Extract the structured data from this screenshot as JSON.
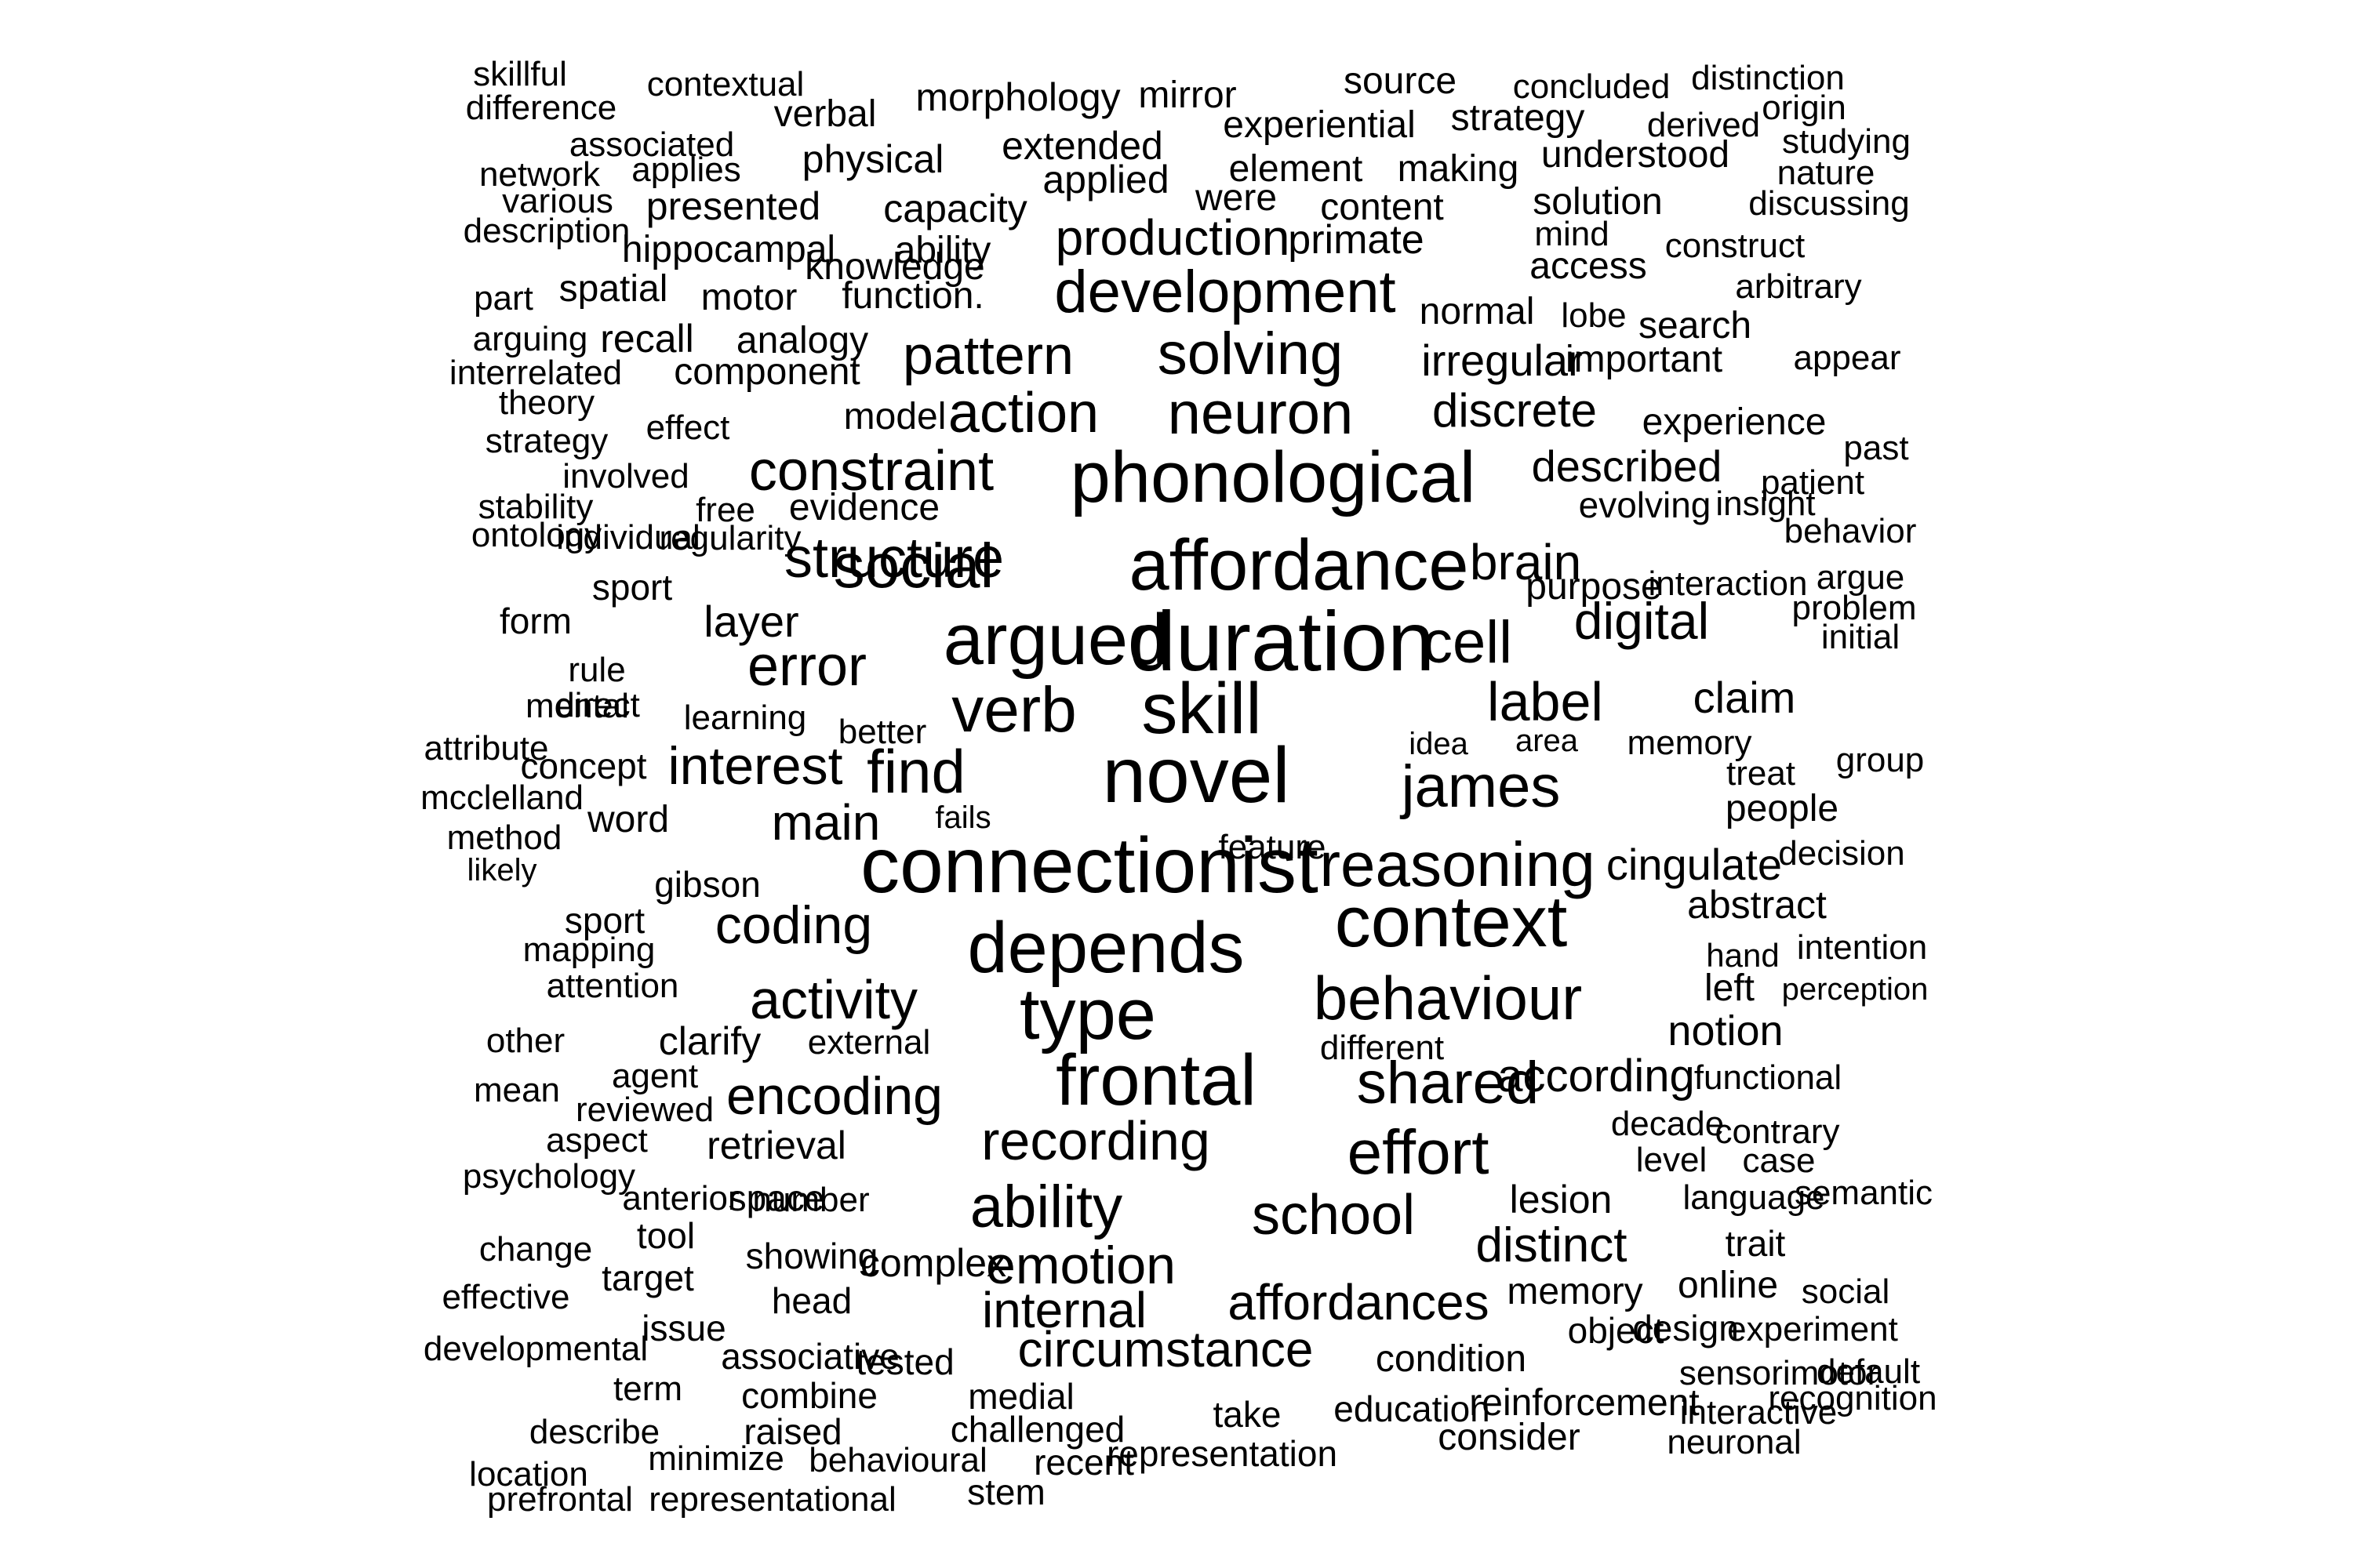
{
  "word_cloud": {
    "text_color": "#000000",
    "background_color": "#ffffff",
    "words": [
      "skillful",
      "difference",
      "contextual",
      "verbal",
      "morphology",
      "mirror",
      "source",
      "experiential",
      "concluded",
      "strategy",
      "derived",
      "distinction",
      "origin",
      "associated",
      "network",
      "applies",
      "physical",
      "extended",
      "applied",
      "element",
      "making",
      "understood",
      "studying",
      "nature",
      "various",
      "presented",
      "capacity",
      "were",
      "content",
      "solution",
      "discussing",
      "description",
      "hippocampal",
      "ability",
      "production",
      "primate",
      "mind",
      "access",
      "construct",
      "knowledge",
      "part",
      "spatial",
      "motor",
      "function.",
      "development",
      "normal",
      "lobe",
      "arbitrary",
      "search",
      "arguing",
      "recall",
      "analogy",
      "solving",
      "pattern",
      "irregular",
      "important",
      "appear",
      "interrelated",
      "component",
      "theory",
      "effect",
      "model",
      "action",
      "neuron",
      "discrete",
      "experience",
      "strategy",
      "involved",
      "constraint",
      "phonological",
      "described",
      "past",
      "patient",
      "stability",
      "free",
      "evidence",
      "structure",
      "evolving",
      "insight",
      "ontology",
      "regularity",
      "individual",
      "social",
      "affordance",
      "brain",
      "behavior",
      "sport",
      "purpose",
      "interaction",
      "argue",
      "form",
      "layer",
      "digital",
      "problem",
      "initial",
      "rule",
      "error",
      "argued",
      "duration",
      "cell",
      "mental",
      "direct",
      "learning",
      "verb",
      "skill",
      "label",
      "claim",
      "attribute",
      "better",
      "idea",
      "area",
      "memory",
      "concept",
      "interest",
      "find",
      "novel",
      "james",
      "treat",
      "group",
      "mcclelland",
      "word",
      "fails",
      "main",
      "people",
      "method",
      "feature",
      "likely",
      "connectionist",
      "reasoning",
      "cingulate",
      "decision",
      "gibson",
      "context",
      "abstract",
      "sport",
      "coding",
      "depends",
      "hand",
      "intention",
      "mapping",
      "attention",
      "activity",
      "type",
      "behaviour",
      "left",
      "perception",
      "other",
      "clarify",
      "external",
      "notion",
      "different",
      "mean",
      "agent",
      "encoding",
      "frontal",
      "shared",
      "according",
      "functional",
      "reviewed",
      "aspect",
      "retrieval",
      "recording",
      "effort",
      "decade",
      "contrary",
      "level",
      "case",
      "psychology",
      "space",
      "anterior",
      "number",
      "ability",
      "school",
      "lesion",
      "language",
      "semantic",
      "change",
      "tool",
      "distinct",
      "trait",
      "showing",
      "complex",
      "emotion",
      "effective",
      "target",
      "head",
      "affordances",
      "memory",
      "online",
      "social",
      "internal",
      "issue",
      "object",
      "design",
      "experiment",
      "developmental",
      "associative",
      "tested",
      "circumstance",
      "condition",
      "term",
      "combine",
      "medial",
      "sensorimotor",
      "default",
      "take",
      "education",
      "reinforcement",
      "interactive",
      "recognition",
      "describe",
      "raised",
      "challenged",
      "consider",
      "neuronal",
      "location",
      "minimize",
      "behavioural",
      "representation",
      "recent",
      "prefrontal",
      "representational",
      "stem"
    ]
  }
}
